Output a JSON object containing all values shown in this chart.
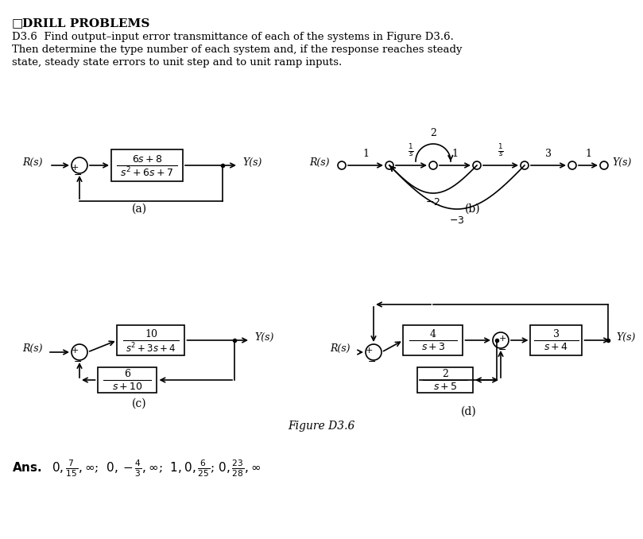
{
  "title_bold": "DRILL PROBLEMS",
  "title_prefix": "□ ",
  "problem_text": "D3.6 Find output–input error transmittance of each of the systems in Figure D3.6.\nThen determine the type number of each system and, if the response reaches steady\nstate, steady state errors to unit step and to unit ramp inputs.",
  "figure_label": "Figure D3.6",
  "ans_text": "Ans.  0, $\\frac{7}{15}$, $\\infty$;  0, $-\\frac{4}{3}$, $\\infty$;  1, 0, $\\frac{6}{25}$; 0, $\\frac{23}{28}$, $\\infty$",
  "bg_color": "#ffffff"
}
